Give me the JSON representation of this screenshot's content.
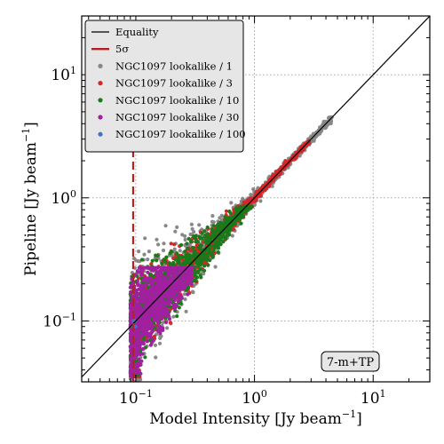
{
  "chart_data": {
    "type": "scatter",
    "xlabel": "Model Intensity [Jy beam$^{-1}$]",
    "xlabel_parts": {
      "main": "Model Intensity [Jy beam",
      "sup": "−1",
      "end": "]"
    },
    "ylabel": "Pipeline [Jy beam$^{-1}$]",
    "ylabel_parts": {
      "main": "Pipeline [Jy beam",
      "sup": "−1",
      "end": "]"
    },
    "xscale": "log",
    "yscale": "log",
    "xlim": [
      0.035,
      30
    ],
    "ylim": [
      0.032,
      30
    ],
    "xticks": [
      {
        "value": 0.1,
        "base": "10",
        "exp": "−1"
      },
      {
        "value": 1,
        "base": "10",
        "exp": "0"
      },
      {
        "value": 10,
        "base": "10",
        "exp": "1"
      }
    ],
    "yticks": [
      {
        "value": 0.1,
        "base": "10",
        "exp": "−1"
      },
      {
        "value": 1,
        "base": "10",
        "exp": "0"
      },
      {
        "value": 10,
        "base": "10",
        "exp": "1"
      }
    ],
    "grid": true,
    "legend_position": "top-left",
    "reference_lines": [
      {
        "name": "Equality",
        "kind": "diagonal",
        "color": "#000000"
      },
      {
        "name": "5σ",
        "kind": "vertical-dashed",
        "x": 0.095,
        "color": "#b22222"
      }
    ],
    "series": [
      {
        "name": "NGC1097 lookalike / 1",
        "color": "#888888",
        "x_range": [
          0.09,
          4.5
        ],
        "y_range": [
          0.032,
          4.5
        ]
      },
      {
        "name": "NGC1097 lookalike / 3",
        "color": "#d62728",
        "x_range": [
          0.09,
          2.9
        ],
        "y_range": [
          0.035,
          2.9
        ]
      },
      {
        "name": "NGC1097 lookalike / 10",
        "color": "#1a7a1a",
        "x_range": [
          0.09,
          0.95
        ],
        "y_range": [
          0.035,
          0.85
        ]
      },
      {
        "name": "NGC1097 lookalike / 30",
        "color": "#a020a0",
        "x_range": [
          0.09,
          0.3
        ],
        "y_range": [
          0.035,
          0.27
        ]
      },
      {
        "name": "NGC1097 lookalike / 100",
        "color": "#4472c4",
        "x_range": [
          0.095,
          0.1
        ],
        "y_range": [
          0.09,
          0.1
        ]
      }
    ],
    "annotation": "7-m+TP"
  }
}
